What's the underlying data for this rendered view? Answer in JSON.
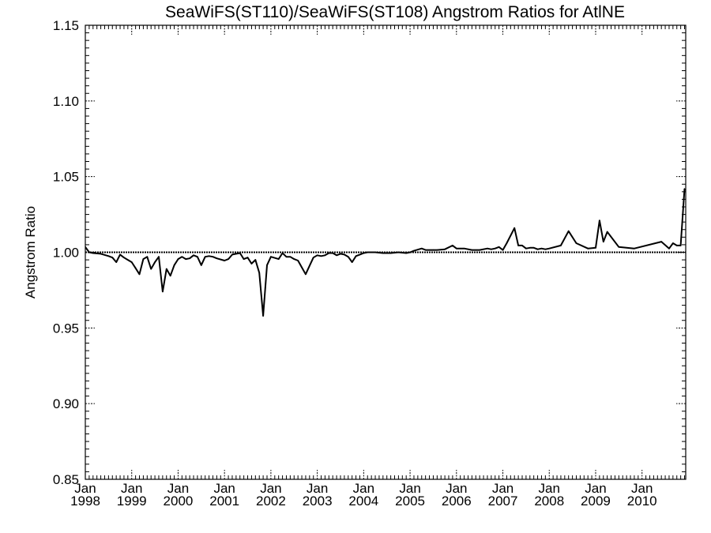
{
  "chart_data": {
    "type": "line",
    "title": "SeaWiFS(ST110)/SeaWiFS(ST108)  Angstrom Ratios for AtlNE",
    "xlabel": "",
    "ylabel": "Angstrom Ratio",
    "xlim": [
      "1998-01",
      "2010-12"
    ],
    "ylim": [
      0.85,
      1.15
    ],
    "y_ticks": [
      "0.85",
      "0.90",
      "0.95",
      "1.00",
      "1.05",
      "1.10",
      "1.15"
    ],
    "x_ticks": [
      {
        "month": "Jan",
        "year": "1998",
        "date": "1998-01"
      },
      {
        "month": "Jan",
        "year": "1999",
        "date": "1999-01"
      },
      {
        "month": "Jan",
        "year": "2000",
        "date": "2000-01"
      },
      {
        "month": "Jan",
        "year": "2001",
        "date": "2001-01"
      },
      {
        "month": "Jan",
        "year": "2002",
        "date": "2002-01"
      },
      {
        "month": "Jan",
        "year": "2003",
        "date": "2003-01"
      },
      {
        "month": "Jan",
        "year": "2004",
        "date": "2004-01"
      },
      {
        "month": "Jan",
        "year": "2005",
        "date": "2005-01"
      },
      {
        "month": "Jan",
        "year": "2006",
        "date": "2006-01"
      },
      {
        "month": "Jan",
        "year": "2007",
        "date": "2007-01"
      },
      {
        "month": "Jan",
        "year": "2008",
        "date": "2008-01"
      },
      {
        "month": "Jan",
        "year": "2009",
        "date": "2009-01"
      },
      {
        "month": "Jan",
        "year": "2010",
        "date": "2010-01"
      }
    ],
    "reference_line": {
      "y": 1.0,
      "style": "dotted"
    },
    "grid": false,
    "series": [
      {
        "x": [
          "1997-12",
          "1998-01",
          "1998-02",
          "1998-03",
          "1998-05",
          "1998-07",
          "1998-08",
          "1998-09",
          "1998-10",
          "1998-11",
          "1998-12",
          "1999-01",
          "1999-02",
          "1999-03",
          "1999-04",
          "1999-05",
          "1999-06",
          "1999-07",
          "1999-08",
          "1999-09",
          "1999-10",
          "1999-11",
          "1999-12",
          "2000-01",
          "2000-02",
          "2000-03",
          "2000-04",
          "2000-05",
          "2000-06",
          "2000-07",
          "2000-08",
          "2000-09",
          "2000-10",
          "2000-11",
          "2001-01",
          "2001-02",
          "2001-03",
          "2001-04",
          "2001-05",
          "2001-06",
          "2001-07",
          "2001-08",
          "2001-09",
          "2001-10",
          "2001-11",
          "2001-12",
          "2002-01",
          "2002-03",
          "2002-04",
          "2002-05",
          "2002-06",
          "2002-07",
          "2002-08",
          "2002-09",
          "2002-10",
          "2002-11",
          "2002-12",
          "2003-01",
          "2003-02",
          "2003-03",
          "2003-04",
          "2003-05",
          "2003-06",
          "2003-07",
          "2003-08",
          "2003-09",
          "2003-10",
          "2003-11",
          "2003-12",
          "2004-01",
          "2004-02",
          "2004-03",
          "2004-04",
          "2004-06",
          "2004-08",
          "2004-10",
          "2004-12",
          "2005-01",
          "2005-02",
          "2005-04",
          "2005-05",
          "2005-07",
          "2005-08",
          "2005-10",
          "2005-12",
          "2006-01",
          "2006-02",
          "2006-03",
          "2006-05",
          "2006-07",
          "2006-09",
          "2006-10",
          "2006-11",
          "2006-12",
          "2007-01",
          "2007-02",
          "2007-04",
          "2007-05",
          "2007-06",
          "2007-07",
          "2007-08",
          "2007-09",
          "2007-10",
          "2007-11",
          "2007-12",
          "2008-01",
          "2008-04",
          "2008-06",
          "2008-08",
          "2008-11",
          "2009-01",
          "2009-02",
          "2009-03",
          "2009-04",
          "2009-07",
          "2009-11",
          "2010-06",
          "2010-08",
          "2010-09",
          "2010-10",
          "2010-11",
          "2010-12"
        ],
        "y": [
          1.002,
          1.0035,
          1.0,
          0.9995,
          0.999,
          0.9975,
          0.9965,
          0.9935,
          0.9985,
          0.9965,
          0.995,
          0.9935,
          0.9895,
          0.9855,
          0.9955,
          0.997,
          0.989,
          0.9935,
          0.997,
          0.974,
          0.989,
          0.9845,
          0.9915,
          0.9955,
          0.997,
          0.9955,
          0.996,
          0.998,
          0.997,
          0.9915,
          0.997,
          0.9975,
          0.997,
          0.996,
          0.9945,
          0.9955,
          0.9985,
          0.999,
          0.9995,
          0.9955,
          0.9965,
          0.9925,
          0.995,
          0.9865,
          0.958,
          0.9915,
          0.997,
          0.9955,
          0.9995,
          0.997,
          0.997,
          0.9955,
          0.9945,
          0.99,
          0.9855,
          0.991,
          0.9965,
          0.998,
          0.9975,
          0.998,
          0.9995,
          0.9995,
          0.998,
          0.999,
          0.9985,
          0.997,
          0.9935,
          0.9975,
          0.9985,
          0.9995,
          1.0,
          1.0,
          1.0,
          0.9995,
          0.9995,
          1.0,
          0.9995,
          1.0,
          1.001,
          1.0025,
          1.0015,
          1.0015,
          1.0015,
          1.002,
          1.0045,
          1.0025,
          1.0025,
          1.0025,
          1.0015,
          1.0015,
          1.0025,
          1.002,
          1.0025,
          1.0035,
          1.0015,
          1.006,
          1.016,
          1.0045,
          1.0045,
          1.0025,
          1.003,
          1.003,
          1.002,
          1.0025,
          1.002,
          1.0025,
          1.0045,
          1.014,
          1.006,
          1.0025,
          1.003,
          1.021,
          1.007,
          1.0135,
          1.0035,
          1.0025,
          1.007,
          1.0025,
          1.006,
          1.0045,
          1.0045,
          1.042
        ]
      }
    ]
  }
}
